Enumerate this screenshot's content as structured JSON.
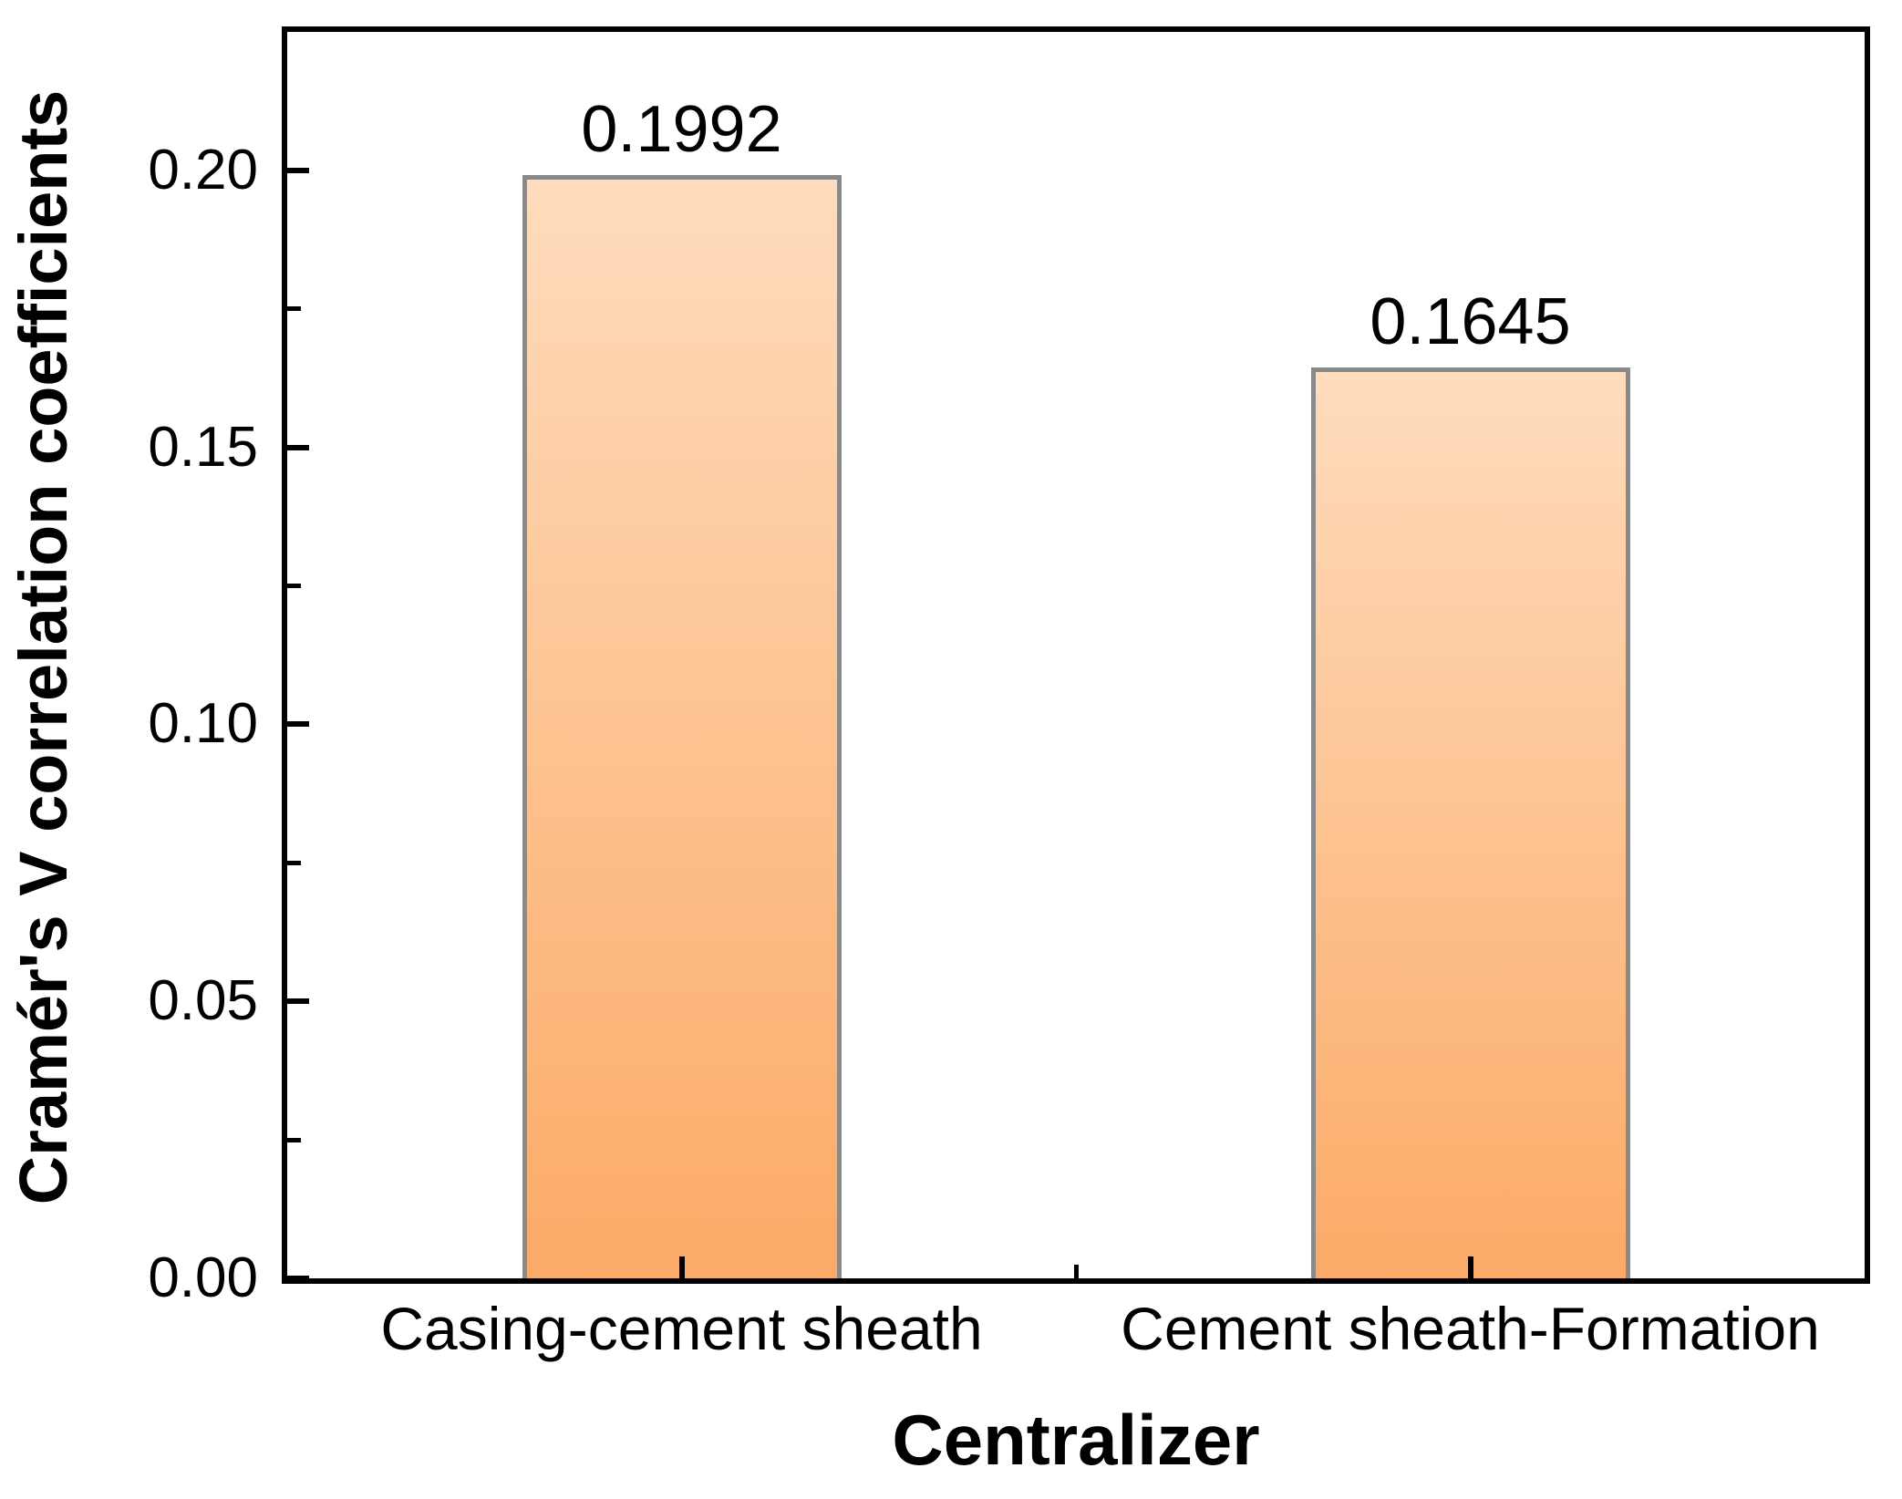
{
  "chart_data": {
    "type": "bar",
    "title": "",
    "categories": [
      "Casing-cement sheath",
      "Cement sheath-Formation"
    ],
    "values": [
      0.1992,
      0.1645
    ],
    "bar_value_labels": [
      "0.1992",
      "0.1645"
    ],
    "xlabel": "Centralizer",
    "ylabel": "Cramér's V correlation coefficients",
    "ylim": [
      0,
      0.225
    ],
    "ytick_values": [
      0,
      0.05,
      0.1,
      0.15,
      0.2
    ],
    "ytick_labels": [
      "0.00",
      "0.05",
      "0.10",
      "0.15",
      "0.20"
    ],
    "yminor_values": [
      0.025,
      0.075,
      0.125,
      0.175
    ],
    "grid": "off",
    "legend": "none",
    "bar_width_fraction": 0.405,
    "colors": {
      "bar_gradient_top": "#fedcbd",
      "bar_gradient_bottom": "#fcaa66",
      "bar_border": "#8a8a8a",
      "axis": "#000000",
      "text": "#000000",
      "background": "#ffffff"
    }
  }
}
